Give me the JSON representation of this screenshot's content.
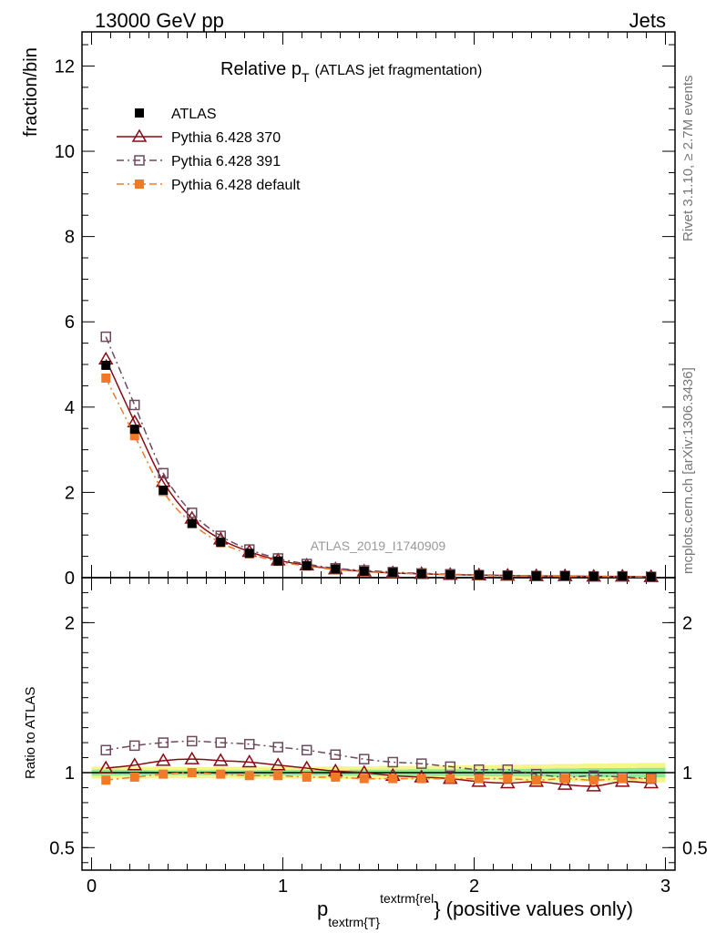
{
  "header": {
    "energy_label": "13000 GeV pp",
    "process_label": "Jets"
  },
  "side_labels": {
    "rivet": "Rivet 3.1.10, ≥ 2.7M events",
    "mcplots": "mcplots.cern.ch [arXiv:1306.3436]"
  },
  "chart_data": [
    {
      "type": "scatter",
      "title_main": "Relative p",
      "title_sub": "T",
      "title_rest": "(ATLAS jet fragmentation)",
      "ylabel": "fraction/bin",
      "watermark": "ATLAS_2019_I1740909",
      "xlim": [
        -0.05,
        3.05
      ],
      "ylim": [
        0,
        12.8
      ],
      "y_ticks": [
        {
          "value": 0,
          "label": "0"
        },
        {
          "value": 2,
          "label": "2"
        },
        {
          "value": 4,
          "label": "4"
        },
        {
          "value": 6,
          "label": "6"
        },
        {
          "value": 8,
          "label": "8"
        },
        {
          "value": 10,
          "label": "10"
        },
        {
          "value": 12,
          "label": "12"
        }
      ],
      "legend_position": "top-left",
      "x": [
        0.075,
        0.225,
        0.375,
        0.525,
        0.675,
        0.825,
        0.975,
        1.125,
        1.275,
        1.425,
        1.575,
        1.725,
        1.875,
        2.025,
        2.175,
        2.325,
        2.475,
        2.625,
        2.775,
        2.925
      ],
      "series": [
        {
          "name": "ATLAS",
          "color": "#000000",
          "marker": "filled-square",
          "line": "none",
          "values": [
            4.98,
            3.48,
            2.05,
            1.27,
            0.83,
            0.57,
            0.39,
            0.28,
            0.2,
            0.15,
            0.12,
            0.09,
            0.07,
            0.06,
            0.05,
            0.04,
            0.04,
            0.03,
            0.03,
            0.02
          ]
        },
        {
          "name": "Pythia 6.428 370",
          "color": "#8b0a14",
          "marker": "open-triangle",
          "line": "solid",
          "values": [
            5.12,
            3.65,
            2.25,
            1.39,
            0.9,
            0.61,
            0.41,
            0.29,
            0.2,
            0.15,
            0.11,
            0.09,
            0.07,
            0.06,
            0.05,
            0.04,
            0.04,
            0.03,
            0.03,
            0.02
          ]
        },
        {
          "name": "Pythia 6.428 391",
          "color": "#6e4a5c",
          "marker": "open-square",
          "line": "dashdot",
          "values": [
            5.65,
            4.05,
            2.45,
            1.52,
            0.98,
            0.66,
            0.45,
            0.32,
            0.22,
            0.17,
            0.13,
            0.1,
            0.08,
            0.06,
            0.05,
            0.04,
            0.04,
            0.03,
            0.03,
            0.02
          ]
        },
        {
          "name": "Pythia 6.428 default",
          "color": "#f07a28",
          "marker": "filled-square",
          "line": "dashdot",
          "values": [
            4.68,
            3.33,
            2.02,
            1.27,
            0.82,
            0.56,
            0.38,
            0.27,
            0.19,
            0.14,
            0.11,
            0.09,
            0.07,
            0.05,
            0.04,
            0.04,
            0.03,
            0.03,
            0.02,
            0.02
          ]
        }
      ]
    },
    {
      "type": "scatter",
      "ylabel": "Ratio to ATLAS",
      "xlabel_main": "p",
      "xlabel_sub": "textrm{T",
      "xlabel_sup": "textrm{rel",
      "xlabel_close": "}",
      "xlabel_rest": "} (positive values only)",
      "xlim": [
        -0.05,
        3.05
      ],
      "ylim": [
        0.35,
        2.3
      ],
      "x_ticks": [
        {
          "value": 0,
          "label": "0"
        },
        {
          "value": 1,
          "label": "1"
        },
        {
          "value": 2,
          "label": "2"
        },
        {
          "value": 3,
          "label": "3"
        }
      ],
      "y_ticks": [
        {
          "value": 0.5,
          "label": "0.5"
        },
        {
          "value": 1,
          "label": "1"
        },
        {
          "value": 2,
          "label": "2"
        }
      ],
      "reference_line": 1,
      "band_colors": {
        "outer": "#f5f58a",
        "inner": "#8ee89a"
      },
      "x": [
        0.075,
        0.225,
        0.375,
        0.525,
        0.675,
        0.825,
        0.975,
        1.125,
        1.275,
        1.425,
        1.575,
        1.725,
        1.875,
        2.025,
        2.175,
        2.325,
        2.475,
        2.625,
        2.775,
        2.925
      ],
      "band_outer": [
        0.04,
        0.04,
        0.038,
        0.038,
        0.038,
        0.04,
        0.04,
        0.04,
        0.042,
        0.042,
        0.045,
        0.045,
        0.048,
        0.05,
        0.052,
        0.055,
        0.058,
        0.06,
        0.062,
        0.065
      ],
      "band_inner": [
        0.02,
        0.018,
        0.016,
        0.016,
        0.016,
        0.016,
        0.018,
        0.018,
        0.018,
        0.02,
        0.02,
        0.022,
        0.022,
        0.024,
        0.025,
        0.026,
        0.028,
        0.03,
        0.03,
        0.032
      ],
      "series": [
        {
          "name": "Pythia 6.428 370",
          "color": "#8b0a14",
          "marker": "open-triangle",
          "line": "solid",
          "values": [
            1.03,
            1.05,
            1.08,
            1.09,
            1.08,
            1.07,
            1.05,
            1.03,
            1.01,
            1.0,
            0.98,
            0.97,
            0.96,
            0.94,
            0.93,
            0.94,
            0.92,
            0.91,
            0.94,
            0.93
          ]
        },
        {
          "name": "Pythia 6.428 391",
          "color": "#6e4a5c",
          "marker": "open-square",
          "line": "dashdot",
          "values": [
            1.15,
            1.18,
            1.2,
            1.21,
            1.2,
            1.19,
            1.17,
            1.15,
            1.12,
            1.09,
            1.07,
            1.06,
            1.04,
            1.02,
            1.02,
            0.99,
            0.97,
            0.98,
            0.97,
            0.96
          ]
        },
        {
          "name": "Pythia 6.428 default",
          "color": "#f07a28",
          "marker": "filled-square",
          "line": "dashdot",
          "values": [
            0.95,
            0.97,
            0.99,
            1.0,
            0.99,
            0.98,
            0.98,
            0.97,
            0.97,
            0.96,
            0.96,
            0.96,
            0.96,
            0.96,
            0.96,
            0.95,
            0.96,
            0.95,
            0.96,
            0.96
          ]
        }
      ]
    }
  ]
}
